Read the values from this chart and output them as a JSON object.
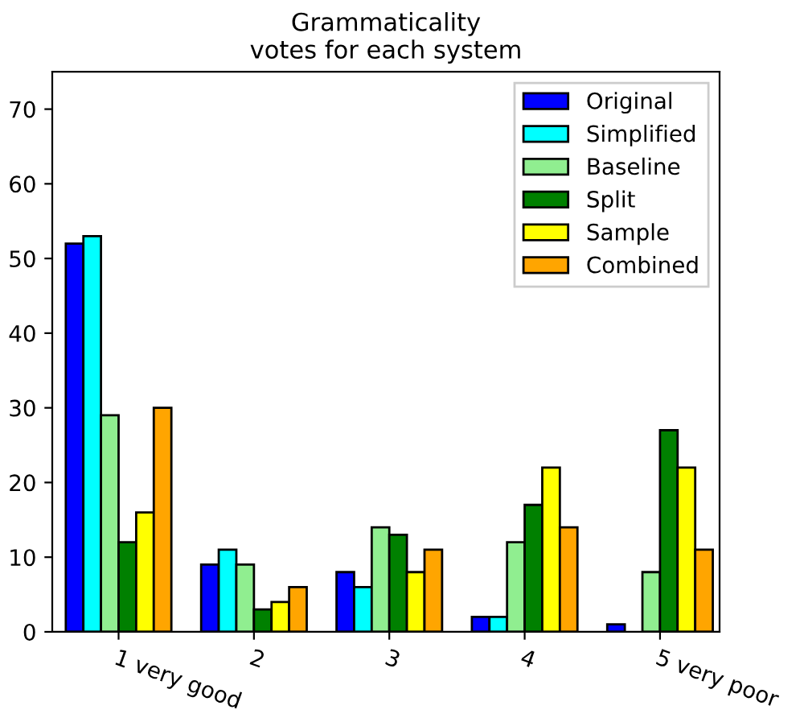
{
  "chart_data": {
    "type": "bar",
    "title": "Grammaticality\nvotes for each system",
    "categories": [
      "1 very good",
      "2",
      "3",
      "4",
      "5 very poor"
    ],
    "series": [
      {
        "name": "Original",
        "color": "#0000ff",
        "values": [
          52,
          9,
          8,
          2,
          1
        ]
      },
      {
        "name": "Simplified",
        "color": "#00ffff",
        "values": [
          53,
          11,
          6,
          2,
          0
        ]
      },
      {
        "name": "Baseline",
        "color": "#90ee90",
        "values": [
          29,
          9,
          14,
          12,
          8
        ]
      },
      {
        "name": "Split",
        "color": "#008000",
        "values": [
          12,
          3,
          13,
          17,
          27
        ]
      },
      {
        "name": "Sample",
        "color": "#ffff00",
        "values": [
          16,
          4,
          8,
          22,
          22
        ]
      },
      {
        "name": "Combined",
        "color": "#ffa500",
        "values": [
          30,
          6,
          11,
          14,
          11
        ]
      }
    ],
    "ylim": [
      0,
      75
    ],
    "yticks": [
      0,
      10,
      20,
      30,
      40,
      50,
      60,
      70
    ],
    "grid": false,
    "legend": "top right"
  }
}
